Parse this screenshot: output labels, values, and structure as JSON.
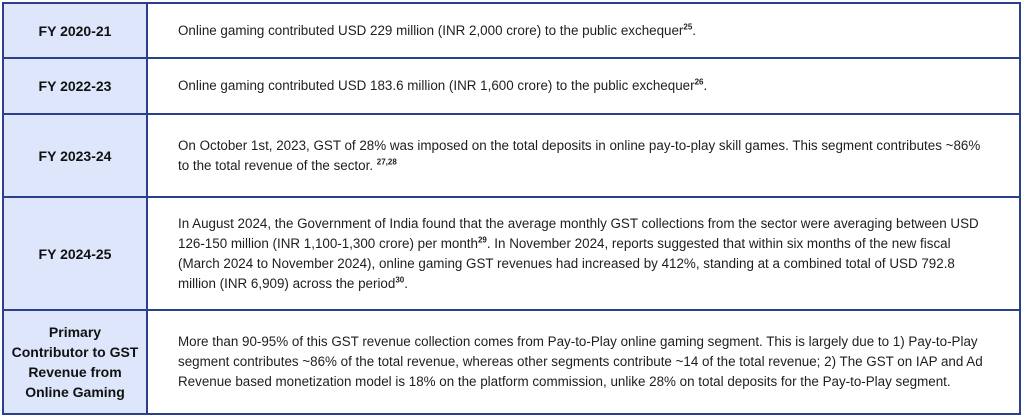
{
  "rows": [
    {
      "label": "FY 2020-21",
      "segments": [
        {
          "text": "Online gaming contributed USD 229 million (INR 2,000 crore) to the public exchequer"
        },
        {
          "sup": "25"
        },
        {
          "text": "."
        }
      ]
    },
    {
      "label": "FY 2022-23",
      "segments": [
        {
          "text": "Online gaming contributed USD 183.6 million (INR 1,600 crore) to the public exchequer"
        },
        {
          "sup": "26"
        },
        {
          "text": "."
        }
      ]
    },
    {
      "label": "FY 2023-24",
      "segments": [
        {
          "text": "On October 1st, 2023, GST of 28% was imposed on the total deposits in online pay-to-play skill games. This segment contributes ~86% to the total revenue of the sector. "
        },
        {
          "sup": "27,28"
        }
      ]
    },
    {
      "label": "FY 2024-25",
      "segments": [
        {
          "text": "In August 2024, the Government of India found that the average monthly GST collections from the sector were averaging between USD 126-150 million (INR 1,100-1,300 crore) per month"
        },
        {
          "sup": "29"
        },
        {
          "text": ". In November 2024, reports suggested that within six months of the new fiscal (March 2024 to November 2024), online gaming GST revenues had increased by 412%, standing at a combined total of USD 792.8 million (INR 6,909) across the period"
        },
        {
          "sup": "30"
        },
        {
          "text": "."
        }
      ]
    },
    {
      "label": "Primary Contributor to GST Revenue from Online Gaming",
      "segments": [
        {
          "text": "More than 90-95% of this GST revenue collection comes from Pay-to-Play online gaming segment. This is largely due to 1) Pay-to-Play segment contributes ~86% of the total revenue, whereas other segments contribute ~14 of the total revenue; 2) The GST  on IAP and Ad Revenue based monetization model is 18% on the platform commission, unlike 28% on total deposits for the Pay-to-Play segment."
        }
      ]
    }
  ]
}
